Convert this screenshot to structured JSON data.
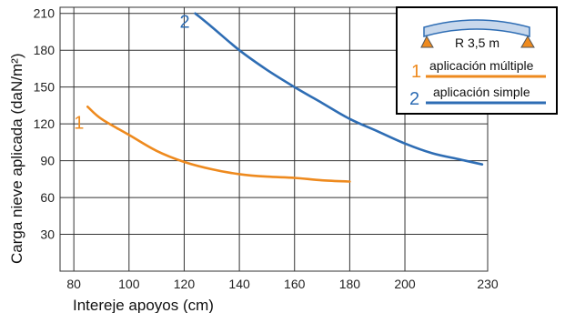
{
  "chart_data": {
    "type": "line",
    "xlabel": "Intereje apoyos (cm)",
    "ylabel": "Carga nieve aplicada  (daN/m²)",
    "xlim": [
      75,
      230
    ],
    "ylim": [
      0,
      215
    ],
    "xticks": [
      80,
      100,
      120,
      140,
      160,
      180,
      200,
      230
    ],
    "xtick_labels": [
      "80",
      "100",
      "120",
      "140",
      "160",
      "180",
      "200",
      "230"
    ],
    "yticks": [
      30,
      60,
      90,
      120,
      150,
      180,
      210
    ],
    "ytick_labels": [
      "30",
      "60",
      "90",
      "120",
      "150",
      "180",
      "210"
    ],
    "grid": true,
    "legend_position": "top-right",
    "legend_arch_label": "R 3,5 m",
    "series": [
      {
        "name": "aplicación múltiple",
        "number": "1",
        "color": "#ee8a1e",
        "x": [
          85,
          90,
          100,
          110,
          120,
          130,
          140,
          150,
          160,
          170,
          180
        ],
        "y": [
          134,
          124,
          111,
          98,
          89,
          83,
          79,
          77,
          76,
          74,
          73
        ]
      },
      {
        "name": "aplicación simple",
        "number": "2",
        "color": "#2e6db4",
        "x": [
          124,
          130,
          140,
          150,
          160,
          170,
          180,
          190,
          200,
          210,
          220,
          228
        ],
        "y": [
          210,
          199,
          180,
          164,
          150,
          137,
          124,
          114,
          104,
          96,
          91,
          87
        ]
      }
    ]
  }
}
